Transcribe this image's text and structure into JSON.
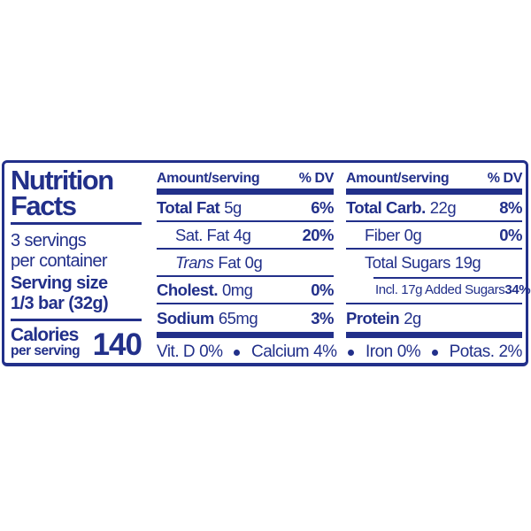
{
  "colors": {
    "label_blue": "#22308a",
    "background": "#ffffff"
  },
  "label": {
    "title_line1": "Nutrition",
    "title_line2": "Facts",
    "servings_line1": "3 servings",
    "servings_line2": "per container",
    "serving_size_label": "Serving size",
    "serving_size_value": "1/3 bar (32g)",
    "calories_label": "Calories",
    "calories_sublabel": "per serving",
    "calories_value": "140"
  },
  "columns": [
    {
      "header": {
        "amount_label": "Amount/serving",
        "dv_label": "% DV"
      },
      "rows": [
        {
          "name": "Total Fat",
          "amount": "5g",
          "dv": "6%"
        },
        {
          "name": "Sat. Fat",
          "amount": "4g",
          "dv": "20%"
        },
        {
          "prefix": "Trans",
          "name": "Fat",
          "amount": "0g",
          "dv": ""
        },
        {
          "name": "Cholest.",
          "amount": "0mg",
          "dv": "0%"
        },
        {
          "name": "Sodium",
          "amount": "65mg",
          "dv": "3%"
        }
      ]
    },
    {
      "header": {
        "amount_label": "Amount/serving",
        "dv_label": "% DV"
      },
      "rows": [
        {
          "name": "Total Carb.",
          "amount": "22g",
          "dv": "8%"
        },
        {
          "name": "Fiber",
          "amount": "0g",
          "dv": "0%"
        },
        {
          "name": "Total Sugars",
          "amount": "19g",
          "dv": ""
        },
        {
          "name": "Incl. 17g Added Sugars",
          "amount": "",
          "dv": "34%"
        },
        {
          "name": "Protein",
          "amount": "2g",
          "dv": ""
        }
      ]
    }
  ],
  "micronutrients": [
    {
      "name": "Vit. D",
      "value": "0%"
    },
    {
      "name": "Calcium",
      "value": "4%"
    },
    {
      "name": "Iron",
      "value": "0%"
    },
    {
      "name": "Potas.",
      "value": "2%"
    }
  ]
}
